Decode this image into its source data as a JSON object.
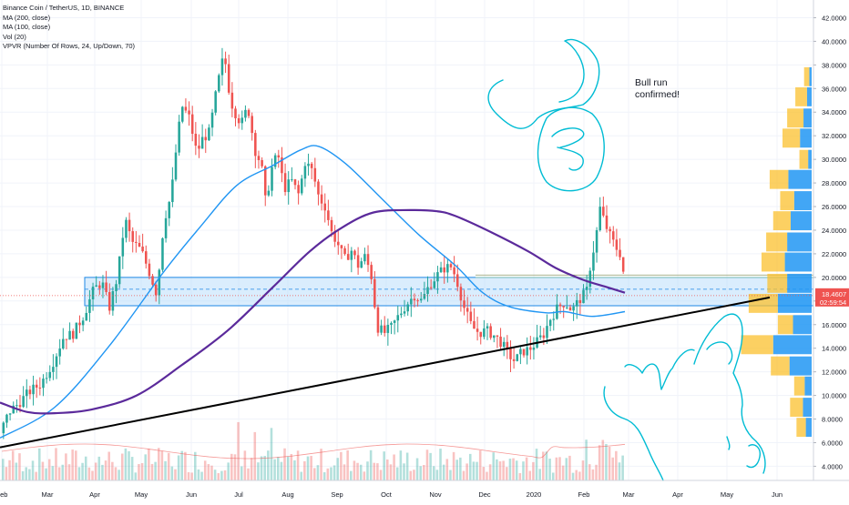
{
  "chart_data": {
    "type": "candlestick",
    "title": "Binance Coin / TetherUS, 1D, BINANCE",
    "indicators": [
      "MA (200, close)",
      "MA (100, close)",
      "Vol (20)",
      "VPVR (Number Of Rows, 24, Up/Down, 70)"
    ],
    "x_tick_labels": [
      "Feb",
      "Mar",
      "Apr",
      "May",
      "Jun",
      "Jul",
      "Aug",
      "Sep",
      "Oct",
      "Nov",
      "Dec",
      "2020",
      "Feb",
      "Mar",
      "Apr",
      "May",
      "Jun"
    ],
    "y_tick_labels": [
      "42.0000",
      "40.0000",
      "38.0000",
      "36.0000",
      "34.0000",
      "32.0000",
      "30.0000",
      "28.0000",
      "26.0000",
      "24.0000",
      "22.0000",
      "20.0000",
      "18.0000",
      "16.0000",
      "14.0000",
      "12.0000",
      "10.0000",
      "8.0000",
      "6.0000",
      "4.0000"
    ],
    "y_ticks": [
      42,
      40,
      38,
      36,
      34,
      32,
      30,
      28,
      26,
      24,
      22,
      20,
      18,
      16,
      14,
      12,
      10,
      8,
      6,
      4
    ],
    "ylim": [
      2.8,
      43.5
    ],
    "x_range": [
      0,
      932
    ],
    "last_price": "18.4607",
    "countdown": "02:59:54",
    "last_price_value": 18.46,
    "annotation_text": [
      "Bull run",
      "confirmed!"
    ],
    "zone": {
      "low": 17.6,
      "high": 20.0
    },
    "colors": {
      "up": "#26a69a",
      "down": "#ef5350",
      "ma100": "#2196f3",
      "ma200": "#5b2a9b",
      "zone": "#bbdefb",
      "zone_border": "#1e88e5",
      "drawing": "#00bcd4",
      "price_tag": "#ef5350"
    },
    "price_anchors": [
      [
        0,
        6.8
      ],
      [
        10,
        8.6
      ],
      [
        20,
        9.3
      ],
      [
        32,
        10.3
      ],
      [
        45,
        11.0
      ],
      [
        58,
        12.8
      ],
      [
        70,
        15.0
      ],
      [
        80,
        15.2
      ],
      [
        92,
        16.8
      ],
      [
        103,
        19.0
      ],
      [
        112,
        19.6
      ],
      [
        120,
        17.4
      ],
      [
        128,
        19.8
      ],
      [
        133,
        22.3
      ],
      [
        137,
        25.0
      ],
      [
        145,
        23.0
      ],
      [
        155,
        22.3
      ],
      [
        165,
        20.2
      ],
      [
        172,
        18.6
      ],
      [
        180,
        24.8
      ],
      [
        188,
        27.0
      ],
      [
        195,
        32.0
      ],
      [
        200,
        34.5
      ],
      [
        208,
        33.5
      ],
      [
        216,
        30.5
      ],
      [
        222,
        31.7
      ],
      [
        230,
        32.3
      ],
      [
        238,
        36.0
      ],
      [
        246,
        39.0
      ],
      [
        253,
        35.0
      ],
      [
        258,
        34.0
      ],
      [
        265,
        33.0
      ],
      [
        272,
        34.5
      ],
      [
        280,
        30.8
      ],
      [
        287,
        29.5
      ],
      [
        292,
        26.0
      ],
      [
        297,
        29.0
      ],
      [
        305,
        30.5
      ],
      [
        312,
        27.5
      ],
      [
        320,
        28.2
      ],
      [
        328,
        27.0
      ],
      [
        335,
        29.8
      ],
      [
        343,
        29.0
      ],
      [
        350,
        26.8
      ],
      [
        357,
        26.0
      ],
      [
        364,
        23.8
      ],
      [
        370,
        23.0
      ],
      [
        378,
        21.5
      ],
      [
        386,
        22.3
      ],
      [
        393,
        21.0
      ],
      [
        401,
        21.8
      ],
      [
        408,
        20.0
      ],
      [
        414,
        15.8
      ],
      [
        422,
        15.3
      ],
      [
        430,
        15.8
      ],
      [
        438,
        16.8
      ],
      [
        446,
        17.7
      ],
      [
        455,
        18.5
      ],
      [
        463,
        18.0
      ],
      [
        471,
        19.3
      ],
      [
        480,
        20.2
      ],
      [
        488,
        20.8
      ],
      [
        496,
        20.9
      ],
      [
        502,
        19.6
      ],
      [
        510,
        17.3
      ],
      [
        518,
        15.8
      ],
      [
        526,
        15.3
      ],
      [
        534,
        15.5
      ],
      [
        542,
        15.1
      ],
      [
        550,
        14.5
      ],
      [
        558,
        13.5
      ],
      [
        565,
        12.9
      ],
      [
        573,
        13.7
      ],
      [
        581,
        13.9
      ],
      [
        589,
        14.5
      ],
      [
        597,
        15.2
      ],
      [
        604,
        16.5
      ],
      [
        612,
        17.4
      ],
      [
        620,
        17.9
      ],
      [
        628,
        17.2
      ],
      [
        636,
        18.1
      ],
      [
        644,
        18.8
      ],
      [
        648,
        21.0
      ],
      [
        654,
        23.3
      ],
      [
        659,
        26.0
      ],
      [
        663,
        24.8
      ],
      [
        668,
        23.8
      ],
      [
        673,
        23.0
      ],
      [
        678,
        22.3
      ],
      [
        683,
        21.8
      ],
      [
        686,
        18.5
      ]
    ],
    "ma100": [
      [
        0,
        6.4
      ],
      [
        60,
        9.0
      ],
      [
        120,
        14.2
      ],
      [
        180,
        20.5
      ],
      [
        220,
        24.3
      ],
      [
        260,
        27.8
      ],
      [
        300,
        29.5
      ],
      [
        330,
        30.8
      ],
      [
        350,
        31.1
      ],
      [
        380,
        29.6
      ],
      [
        420,
        26.6
      ],
      [
        460,
        23.6
      ],
      [
        500,
        21.0
      ],
      [
        530,
        18.7
      ],
      [
        560,
        17.5
      ],
      [
        600,
        17.0
      ],
      [
        620,
        17.1
      ],
      [
        650,
        16.7
      ],
      [
        686,
        17.1
      ]
    ],
    "ma200": [
      [
        0,
        9.4
      ],
      [
        30,
        8.6
      ],
      [
        60,
        8.5
      ],
      [
        100,
        8.8
      ],
      [
        150,
        10.0
      ],
      [
        200,
        12.6
      ],
      [
        250,
        15.5
      ],
      [
        300,
        19.2
      ],
      [
        340,
        22.2
      ],
      [
        375,
        24.2
      ],
      [
        410,
        25.5
      ],
      [
        450,
        25.7
      ],
      [
        480,
        25.6
      ],
      [
        500,
        25.2
      ],
      [
        540,
        23.8
      ],
      [
        580,
        22.2
      ],
      [
        610,
        20.8
      ],
      [
        640,
        19.8
      ],
      [
        665,
        19.2
      ],
      [
        686,
        18.7
      ]
    ],
    "trendline": [
      [
        0,
        5.6
      ],
      [
        845,
        18.3
      ]
    ],
    "vpvr": [
      {
        "price": 37.0,
        "up": 0.04,
        "down": 0.09
      },
      {
        "price": 35.3,
        "up": 0.08,
        "down": 0.2
      },
      {
        "price": 33.5,
        "up": 0.14,
        "down": 0.28
      },
      {
        "price": 31.8,
        "up": 0.2,
        "down": 0.3
      },
      {
        "price": 30.0,
        "up": 0.06,
        "down": 0.15
      },
      {
        "price": 28.3,
        "up": 0.4,
        "down": 0.32
      },
      {
        "price": 26.5,
        "up": 0.3,
        "down": 0.24
      },
      {
        "price": 24.8,
        "up": 0.36,
        "down": 0.3
      },
      {
        "price": 23.0,
        "up": 0.42,
        "down": 0.36
      },
      {
        "price": 21.3,
        "up": 0.46,
        "down": 0.4
      },
      {
        "price": 19.5,
        "up": 0.42,
        "down": 0.34
      },
      {
        "price": 17.8,
        "up": 0.58,
        "down": 0.5
      },
      {
        "price": 16.0,
        "up": 0.32,
        "down": 0.26
      },
      {
        "price": 14.3,
        "up": 0.66,
        "down": 0.55
      },
      {
        "price": 12.5,
        "up": 0.38,
        "down": 0.32
      },
      {
        "price": 10.8,
        "up": 0.12,
        "down": 0.18
      },
      {
        "price": 9.0,
        "up": 0.15,
        "down": 0.22
      },
      {
        "price": 7.3,
        "up": 0.1,
        "down": 0.16
      }
    ]
  }
}
